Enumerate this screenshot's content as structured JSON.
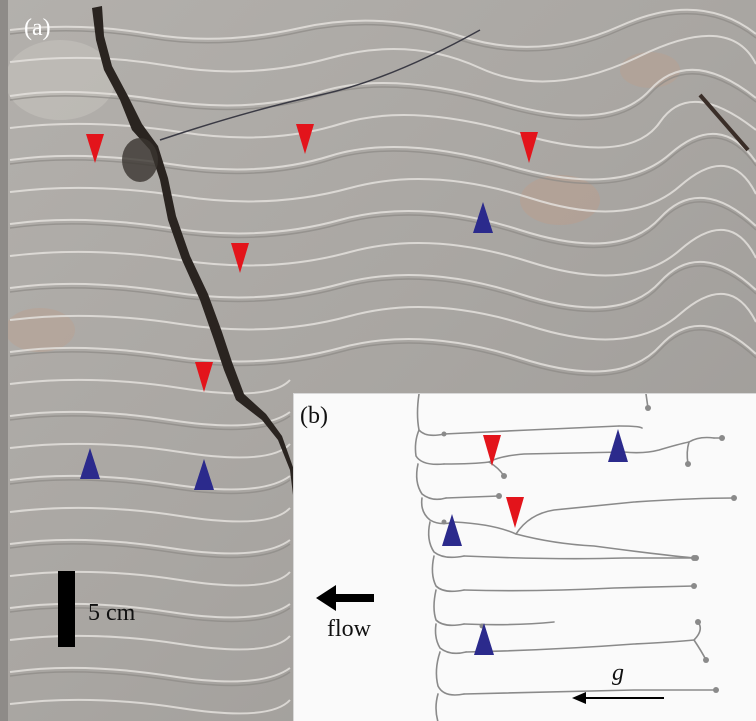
{
  "panel_a": {
    "label": "(a)"
  },
  "panel_b": {
    "label": "(b)",
    "flow_label": "flow",
    "gravity_label": "g"
  },
  "scale_bar": {
    "label": "5 cm"
  },
  "colors": {
    "rock": "#a8a5a1",
    "rock_light": "#c9c6c2",
    "crack": "#2a2420",
    "marker_red": "#e3141b",
    "marker_blue": "#2b2a8c",
    "inset_bg": "#fafafa",
    "rivulet": "#8a8a8a"
  },
  "markers": {
    "red": "red-down-triangle",
    "blue": "blue-up-triangle"
  }
}
